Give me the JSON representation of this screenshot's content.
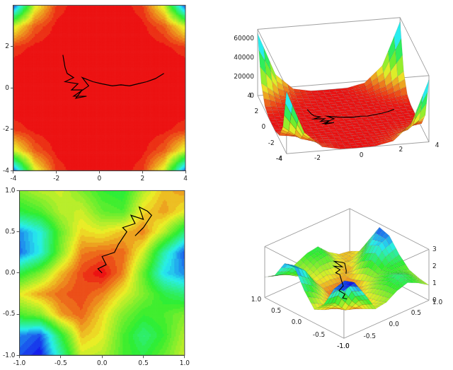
{
  "chart_data": [
    {
      "type": "contour",
      "xlim": [
        -4,
        4
      ],
      "ylim": [
        -4,
        4
      ],
      "xticks": [
        -4,
        -2,
        0,
        2,
        4
      ],
      "yticks": [
        -4,
        -2,
        0,
        2
      ],
      "zlim": [
        0,
        70000
      ],
      "x": [
        -4,
        -3,
        -2,
        -1,
        0,
        1,
        2,
        3,
        4
      ],
      "y": [
        -4,
        -3,
        -2,
        -1,
        0,
        1,
        2,
        3,
        4
      ],
      "z": [
        [
          65536,
          20736,
          4096,
          256,
          0,
          256,
          4096,
          20736,
          65536
        ],
        [
          20736,
          6561,
          1296,
          81,
          0,
          81,
          1296,
          6561,
          20736
        ],
        [
          4096,
          1296,
          256,
          16,
          0,
          16,
          256,
          1296,
          4096
        ],
        [
          256,
          81,
          16,
          1,
          0,
          1,
          16,
          81,
          256
        ],
        [
          0,
          0,
          0,
          0,
          0,
          0,
          0,
          0,
          0
        ],
        [
          256,
          81,
          16,
          1,
          0,
          1,
          16,
          81,
          256
        ],
        [
          4096,
          1296,
          256,
          16,
          0,
          16,
          256,
          1296,
          4096
        ],
        [
          20736,
          6561,
          1296,
          81,
          0,
          81,
          1296,
          6561,
          20736
        ],
        [
          65536,
          20736,
          4096,
          256,
          0,
          256,
          4096,
          20736,
          65536
        ]
      ],
      "path": {
        "color": "#000000",
        "x": [
          -1.7,
          -1.6,
          -1.5,
          -1.2,
          -1.6,
          -1.0,
          -1.3,
          -0.8,
          -1.1,
          -0.6,
          -1.2,
          -0.5,
          -0.8,
          -0.3,
          0.1,
          0.6,
          1.0,
          1.4,
          1.8,
          2.2,
          2.6,
          3.0
        ],
        "y": [
          1.6,
          1.0,
          0.7,
          0.5,
          0.3,
          0.2,
          -0.1,
          -0.1,
          -0.5,
          -0.4,
          -0.4,
          0.1,
          0.5,
          0.3,
          0.2,
          0.1,
          0.15,
          0.1,
          0.2,
          0.3,
          0.45,
          0.7
        ]
      }
    },
    {
      "type": "surface3d",
      "xlim": [
        -4,
        4
      ],
      "ylim": [
        -4,
        4
      ],
      "zlim": [
        0,
        70000
      ],
      "xticks": [
        -4,
        -2,
        0,
        2,
        4
      ],
      "yticks": [
        -4,
        -2,
        0,
        2,
        4
      ],
      "zticks": [
        0,
        20000,
        40000,
        60000
      ],
      "x": [
        -4,
        -3,
        -2,
        -1,
        0,
        1,
        2,
        3,
        4
      ],
      "y": [
        -4,
        -3,
        -2,
        -1,
        0,
        1,
        2,
        3,
        4
      ],
      "z": [
        [
          65536,
          20736,
          4096,
          256,
          0,
          256,
          4096,
          20736,
          65536
        ],
        [
          20736,
          6561,
          1296,
          81,
          0,
          81,
          1296,
          6561,
          20736
        ],
        [
          4096,
          1296,
          256,
          16,
          0,
          16,
          256,
          1296,
          4096
        ],
        [
          256,
          81,
          16,
          1,
          0,
          1,
          16,
          81,
          256
        ],
        [
          0,
          0,
          0,
          0,
          0,
          0,
          0,
          0,
          0
        ],
        [
          256,
          81,
          16,
          1,
          0,
          1,
          16,
          81,
          256
        ],
        [
          4096,
          1296,
          256,
          16,
          0,
          16,
          256,
          1296,
          4096
        ],
        [
          20736,
          6561,
          1296,
          81,
          0,
          81,
          1296,
          6561,
          20736
        ],
        [
          65536,
          20736,
          4096,
          256,
          0,
          256,
          4096,
          20736,
          65536
        ]
      ],
      "path": {
        "color": "#000000",
        "x": [
          -1.7,
          -1.6,
          -1.5,
          -1.2,
          -1.6,
          -1.0,
          -1.3,
          -0.8,
          -1.1,
          -0.6,
          -1.2,
          -0.5,
          -0.8,
          -0.3,
          0.1,
          0.6,
          1.0,
          1.4,
          1.8,
          2.2,
          2.6,
          3.0
        ],
        "y": [
          1.6,
          1.0,
          0.7,
          0.5,
          0.3,
          0.2,
          -0.1,
          -0.1,
          -0.5,
          -0.4,
          -0.4,
          0.1,
          0.5,
          0.3,
          0.2,
          0.1,
          0.15,
          0.1,
          0.2,
          0.3,
          0.45,
          0.7
        ],
        "z": [
          0,
          0,
          0,
          0,
          0,
          0,
          0,
          0,
          0,
          0,
          0,
          0,
          0,
          0,
          0,
          0,
          0,
          0,
          0,
          0,
          0,
          0
        ]
      }
    },
    {
      "type": "contour",
      "xlim": [
        -1,
        1
      ],
      "ylim": [
        -1,
        1
      ],
      "xticks": [
        {
          "value": -1,
          "label": "-1.0"
        },
        {
          "value": -0.5,
          "label": "-0.5"
        },
        {
          "value": 0,
          "label": "0.0"
        },
        {
          "value": 0.5,
          "label": "0.5"
        },
        {
          "value": 1,
          "label": "1.0"
        }
      ],
      "yticks": [
        {
          "value": -1,
          "label": "-1.0"
        },
        {
          "value": -0.5,
          "label": "-0.5"
        },
        {
          "value": 0,
          "label": "0.0"
        },
        {
          "value": 0.5,
          "label": "0.5"
        },
        {
          "value": 1,
          "label": "1.0"
        }
      ],
      "zlim": [
        0,
        3
      ],
      "x": [
        -1,
        -0.75,
        -0.5,
        -0.25,
        0,
        0.25,
        0.5,
        0.75,
        1
      ],
      "y": [
        -1,
        -0.75,
        -0.5,
        -0.25,
        0,
        0.25,
        0.5,
        0.75,
        1
      ],
      "z": [
        [
          2.8,
          3.0,
          2.0,
          0.9,
          1.0,
          1.4,
          1.6,
          1.3,
          0.9
        ],
        [
          2.6,
          2.8,
          1.6,
          0.6,
          0.8,
          1.4,
          1.8,
          1.5,
          1.0
        ],
        [
          1.4,
          1.2,
          0.5,
          0.3,
          0.7,
          1.2,
          1.5,
          1.4,
          1.2
        ],
        [
          0.8,
          0.5,
          0.3,
          0.2,
          0.4,
          0.8,
          1.2,
          1.6,
          1.8
        ],
        [
          1.6,
          1.2,
          0.6,
          0.2,
          0.0,
          0.4,
          1.3,
          2.3,
          2.6
        ],
        [
          2.7,
          2.2,
          1.2,
          0.4,
          0.3,
          0.3,
          0.9,
          2.0,
          2.8
        ],
        [
          2.6,
          2.2,
          1.3,
          0.7,
          0.8,
          0.6,
          0.4,
          1.0,
          1.8
        ],
        [
          1.6,
          1.4,
          1.0,
          0.9,
          1.3,
          1.4,
          0.7,
          0.5,
          0.8
        ],
        [
          1.2,
          1.0,
          0.9,
          1.2,
          1.5,
          1.6,
          1.0,
          0.6,
          0.5
        ]
      ],
      "path": {
        "color": "#000000",
        "x": [
          0.0,
          -0.05,
          0.05,
          0.0,
          0.15,
          0.2,
          0.3,
          0.25,
          0.4,
          0.35,
          0.5,
          0.45,
          0.55,
          0.6,
          0.5,
          0.4
        ],
        "y": [
          0.0,
          0.05,
          0.1,
          0.2,
          0.25,
          0.35,
          0.5,
          0.55,
          0.6,
          0.7,
          0.65,
          0.8,
          0.75,
          0.7,
          0.55,
          0.45
        ]
      }
    },
    {
      "type": "surface3d",
      "xlim": [
        -1,
        1
      ],
      "ylim": [
        -1,
        1
      ],
      "zlim": [
        0,
        3
      ],
      "xticks": [
        {
          "value": -1,
          "label": "-1.0"
        },
        {
          "value": -0.5,
          "label": "-0.5"
        },
        {
          "value": 0,
          "label": "0.0"
        },
        {
          "value": 0.5,
          "label": "0.5"
        },
        {
          "value": 1,
          "label": "1.0"
        }
      ],
      "yticks": [
        {
          "value": -1,
          "label": "-1.0"
        },
        {
          "value": -0.5,
          "label": "-0.5"
        },
        {
          "value": 0,
          "label": "0.0"
        },
        {
          "value": 0.5,
          "label": "0.5"
        },
        {
          "value": 1,
          "label": "1.0"
        }
      ],
      "zticks": [
        0,
        1,
        2,
        3
      ],
      "x": [
        -1,
        -0.75,
        -0.5,
        -0.25,
        0,
        0.25,
        0.5,
        0.75,
        1
      ],
      "y": [
        -1,
        -0.75,
        -0.5,
        -0.25,
        0,
        0.25,
        0.5,
        0.75,
        1
      ],
      "z": [
        [
          2.8,
          3.0,
          2.0,
          0.9,
          1.0,
          1.4,
          1.6,
          1.3,
          0.9
        ],
        [
          2.6,
          2.8,
          1.6,
          0.6,
          0.8,
          1.4,
          1.8,
          1.5,
          1.0
        ],
        [
          1.4,
          1.2,
          0.5,
          0.3,
          0.7,
          1.2,
          1.5,
          1.4,
          1.2
        ],
        [
          0.8,
          0.5,
          0.3,
          0.2,
          0.4,
          0.8,
          1.2,
          1.6,
          1.8
        ],
        [
          1.6,
          1.2,
          0.6,
          0.2,
          0.0,
          0.4,
          1.3,
          2.3,
          2.6
        ],
        [
          2.7,
          2.2,
          1.2,
          0.4,
          0.3,
          0.3,
          0.9,
          2.0,
          2.8
        ],
        [
          2.6,
          2.2,
          1.3,
          0.7,
          0.8,
          0.6,
          0.4,
          1.0,
          1.8
        ],
        [
          1.6,
          1.4,
          1.0,
          0.9,
          1.3,
          1.4,
          0.7,
          0.5,
          0.8
        ],
        [
          1.2,
          1.0,
          0.9,
          1.2,
          1.5,
          1.6,
          1.0,
          0.6,
          0.5
        ]
      ],
      "path": {
        "color": "#000000",
        "x": [
          0.0,
          -0.05,
          0.05,
          0.0,
          0.15,
          0.2,
          0.3,
          0.25,
          0.4,
          0.35,
          0.5,
          0.45,
          0.55,
          0.6,
          0.5,
          0.4
        ],
        "y": [
          0.0,
          0.05,
          0.1,
          0.2,
          0.25,
          0.35,
          0.5,
          0.55,
          0.6,
          0.7,
          0.65,
          0.8,
          0.75,
          0.7,
          0.55,
          0.45
        ],
        "z": [
          0.0,
          0.05,
          0.1,
          0.25,
          0.3,
          0.45,
          0.5,
          0.6,
          0.55,
          0.7,
          0.55,
          0.75,
          0.65,
          0.6,
          0.45,
          0.5
        ]
      }
    }
  ]
}
